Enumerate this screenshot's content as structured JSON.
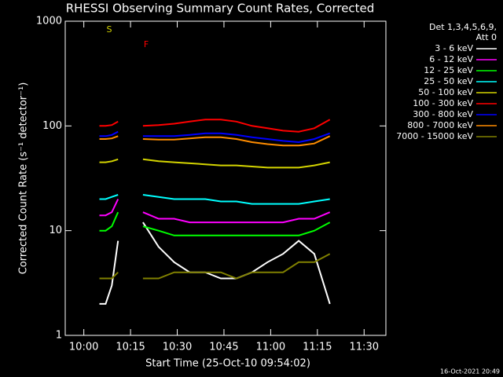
{
  "chart_data": {
    "type": "line",
    "title": "RHESSI Observing Summary Count Rates, Corrected",
    "x_label": "Start Time (25-Oct-10 09:54:02)",
    "y_label": "Corrected Count Rate (s⁻¹ detector⁻¹)",
    "legend_header": [
      "Det 1,3,4,5,6,9,",
      "Att 0"
    ],
    "timestamp": "16-Oct-2021 20:49",
    "annotations": [
      "S",
      "F"
    ],
    "log_scale": true,
    "legend": "right",
    "x": [
      605,
      607,
      609,
      611,
      615,
      619,
      624,
      629,
      634,
      639,
      644,
      649,
      654,
      659,
      664,
      669,
      674,
      679
    ],
    "xlim": [
      594.03,
      697
    ],
    "xticks": [
      {
        "value": 600,
        "label": "10:00"
      },
      {
        "value": 615,
        "label": "10:15"
      },
      {
        "value": 630,
        "label": "10:30"
      },
      {
        "value": 645,
        "label": "10:45"
      },
      {
        "value": 660,
        "label": "11:00"
      },
      {
        "value": 675,
        "label": "11:15"
      },
      {
        "value": 690,
        "label": "11:30"
      }
    ],
    "ylim": [
      1,
      1000
    ],
    "yticks": [
      1,
      10,
      100,
      1000
    ],
    "series": [
      {
        "name": "3 - 6 keV",
        "color": "#ffffff",
        "values": [
          2,
          2,
          3,
          8,
          null,
          12,
          7,
          5,
          4,
          4,
          3.5,
          3.5,
          4,
          5,
          6,
          8,
          6,
          2
        ]
      },
      {
        "name": "6 - 12 keV",
        "color": "#ff00ff",
        "values": [
          14,
          14,
          15,
          20,
          null,
          15,
          13,
          13,
          12,
          12,
          12,
          12,
          12,
          12,
          12,
          13,
          13,
          15
        ]
      },
      {
        "name": "12 - 25 keV",
        "color": "#00ff00",
        "values": [
          10,
          10,
          11,
          15,
          null,
          11,
          10,
          9,
          9,
          9,
          9,
          9,
          9,
          9,
          9,
          9,
          10,
          12
        ]
      },
      {
        "name": "25 - 50 keV",
        "color": "#00ffff",
        "values": [
          20,
          20,
          21,
          22,
          null,
          22,
          21,
          20,
          20,
          20,
          19,
          19,
          18,
          18,
          18,
          18,
          19,
          20
        ]
      },
      {
        "name": "50 - 100 keV",
        "color": "#d4d400",
        "values": [
          45,
          45,
          46,
          48,
          null,
          48,
          46,
          45,
          44,
          43,
          42,
          42,
          41,
          40,
          40,
          40,
          42,
          45
        ]
      },
      {
        "name": "100 - 300 keV",
        "color": "#ff0000",
        "values": [
          100,
          100,
          102,
          110,
          null,
          100,
          102,
          105,
          110,
          115,
          115,
          110,
          100,
          95,
          90,
          88,
          95,
          115
        ]
      },
      {
        "name": "300 - 800 keV",
        "color": "#0000ff",
        "values": [
          80,
          80,
          82,
          88,
          null,
          80,
          80,
          80,
          82,
          85,
          85,
          82,
          78,
          75,
          72,
          70,
          75,
          85
        ]
      },
      {
        "name": "800 - 7000 keV",
        "color": "#ff8c00",
        "values": [
          75,
          75,
          76,
          80,
          null,
          75,
          74,
          74,
          76,
          78,
          78,
          75,
          70,
          67,
          65,
          65,
          68,
          80
        ]
      },
      {
        "name": "7000 - 15000 keV",
        "color": "#808000",
        "values": [
          3.5,
          3.5,
          3.5,
          4,
          null,
          3.5,
          3.5,
          4,
          4,
          4,
          4,
          3.5,
          4,
          4,
          4,
          5,
          5,
          6
        ]
      }
    ]
  }
}
